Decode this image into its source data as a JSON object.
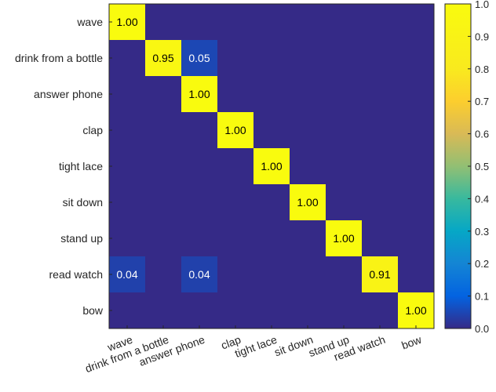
{
  "chart_data": {
    "type": "heatmap",
    "title": "",
    "xlabel": "",
    "ylabel": "",
    "rows": [
      "wave",
      "drink from a bottle",
      "answer phone",
      "clap",
      "tight lace",
      "sit down",
      "stand up",
      "read watch",
      "bow"
    ],
    "cols": [
      "wave",
      "drink from a bottle",
      "answer phone",
      "clap",
      "tight lace",
      "sit down",
      "stand up",
      "read watch",
      "bow"
    ],
    "values": [
      [
        1.0,
        0,
        0,
        0,
        0,
        0,
        0,
        0,
        0
      ],
      [
        0,
        0.95,
        0.05,
        0,
        0,
        0,
        0,
        0,
        0
      ],
      [
        0,
        0,
        1.0,
        0,
        0,
        0,
        0,
        0,
        0
      ],
      [
        0,
        0,
        0,
        1.0,
        0,
        0,
        0,
        0,
        0
      ],
      [
        0,
        0,
        0,
        0,
        1.0,
        0,
        0,
        0,
        0
      ],
      [
        0,
        0,
        0,
        0,
        0,
        1.0,
        0,
        0,
        0
      ],
      [
        0,
        0,
        0,
        0,
        0,
        0,
        1.0,
        0,
        0
      ],
      [
        0.04,
        0,
        0.04,
        0,
        0,
        0,
        0,
        0.91,
        0
      ],
      [
        0,
        0,
        0,
        0,
        0,
        0,
        0,
        0,
        1.0
      ]
    ],
    "cell_labels": [
      [
        "1.00",
        "",
        "",
        "",
        "",
        "",
        "",
        "",
        ""
      ],
      [
        "",
        "0.95",
        "0.05",
        "",
        "",
        "",
        "",
        "",
        ""
      ],
      [
        "",
        "",
        "1.00",
        "",
        "",
        "",
        "",
        "",
        ""
      ],
      [
        "",
        "",
        "",
        "1.00",
        "",
        "",
        "",
        "",
        ""
      ],
      [
        "",
        "",
        "",
        "",
        "1.00",
        "",
        "",
        "",
        ""
      ],
      [
        "",
        "",
        "",
        "",
        "",
        "1.00",
        "",
        "",
        ""
      ],
      [
        "",
        "",
        "",
        "",
        "",
        "",
        "1.00",
        "",
        ""
      ],
      [
        "0.04",
        "",
        "0.04",
        "",
        "",
        "",
        "",
        "0.91",
        ""
      ],
      [
        "",
        "",
        "",
        "",
        "",
        "",
        "",
        "",
        "1.00"
      ]
    ],
    "colorbar": {
      "range": [
        0,
        1
      ],
      "ticks": [
        "0.0",
        "0.1",
        "0.2",
        "0.3",
        "0.4",
        "0.5",
        "0.6",
        "0.7",
        "0.8",
        "0.9",
        "1.0"
      ],
      "colormap": "parula"
    },
    "colors": {
      "low": "#352a87",
      "high": "#f9fb0e"
    }
  }
}
